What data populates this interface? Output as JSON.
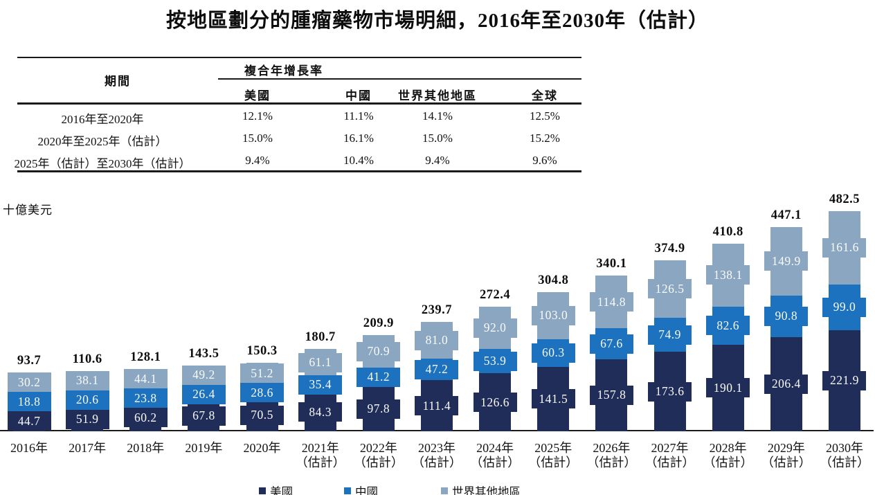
{
  "title": "按地區劃分的腫瘤藥物市場明細，2016年至2030年（估計）",
  "unit_label": "十億美元",
  "cagr_table": {
    "period_header": "期間",
    "group_header": "複合年增長率",
    "columns": [
      "美國",
      "中國",
      "世界其他地區",
      "全球"
    ],
    "rows": [
      {
        "period": "2016年至2020年",
        "values": [
          "12.1%",
          "11.1%",
          "14.1%",
          "12.5%"
        ]
      },
      {
        "period": "2020年至2025年（估計）",
        "values": [
          "15.0%",
          "16.1%",
          "15.0%",
          "15.2%"
        ]
      },
      {
        "period": "2025年（估計）至2030年（估計）",
        "values": [
          "9.4%",
          "10.4%",
          "9.4%",
          "9.6%"
        ]
      }
    ]
  },
  "chart_data": {
    "type": "bar",
    "stacked": true,
    "title": "按地區劃分的腫瘤藥物市場明細，2016年至2030年（估計）",
    "ylabel": "十億美元",
    "ylim": [
      0,
      500
    ],
    "grid": false,
    "legend_position": "bottom",
    "categories": [
      {
        "label": "2016年",
        "note": ""
      },
      {
        "label": "2017年",
        "note": ""
      },
      {
        "label": "2018年",
        "note": ""
      },
      {
        "label": "2019年",
        "note": ""
      },
      {
        "label": "2020年",
        "note": ""
      },
      {
        "label": "2021年",
        "note": "（估計）"
      },
      {
        "label": "2022年",
        "note": "（估計）"
      },
      {
        "label": "2023年",
        "note": "（估計）"
      },
      {
        "label": "2024年",
        "note": "（估計）"
      },
      {
        "label": "2025年",
        "note": "（估計）"
      },
      {
        "label": "2026年",
        "note": "（估計）"
      },
      {
        "label": "2027年",
        "note": "（估計）"
      },
      {
        "label": "2028年",
        "note": "（估計）"
      },
      {
        "label": "2029年",
        "note": "（估計）"
      },
      {
        "label": "2030年",
        "note": "（估計）"
      }
    ],
    "series": [
      {
        "name": "美國",
        "color": "#1f2d58",
        "values": [
          44.7,
          51.9,
          60.2,
          67.8,
          70.5,
          84.3,
          97.8,
          111.4,
          126.6,
          141.5,
          157.8,
          173.6,
          190.1,
          206.4,
          221.9
        ]
      },
      {
        "name": "中國",
        "color": "#1c72be",
        "values": [
          18.8,
          20.6,
          23.8,
          26.4,
          28.6,
          35.4,
          41.2,
          47.2,
          53.9,
          60.3,
          67.6,
          74.9,
          82.6,
          90.8,
          99.0
        ]
      },
      {
        "name": "世界其他地區",
        "color": "#8aa6c1",
        "values": [
          30.2,
          38.1,
          44.1,
          49.2,
          51.2,
          61.1,
          70.9,
          81.0,
          92.0,
          103.0,
          114.8,
          126.5,
          138.1,
          149.9,
          161.6
        ]
      }
    ],
    "totals": [
      93.7,
      110.6,
      128.1,
      143.5,
      150.3,
      180.7,
      209.9,
      239.7,
      272.4,
      304.8,
      340.1,
      374.9,
      410.8,
      447.1,
      482.5
    ]
  },
  "legend": {
    "items": [
      {
        "label": "美國"
      },
      {
        "label": "中國"
      },
      {
        "label": "世界其他地區"
      }
    ]
  }
}
